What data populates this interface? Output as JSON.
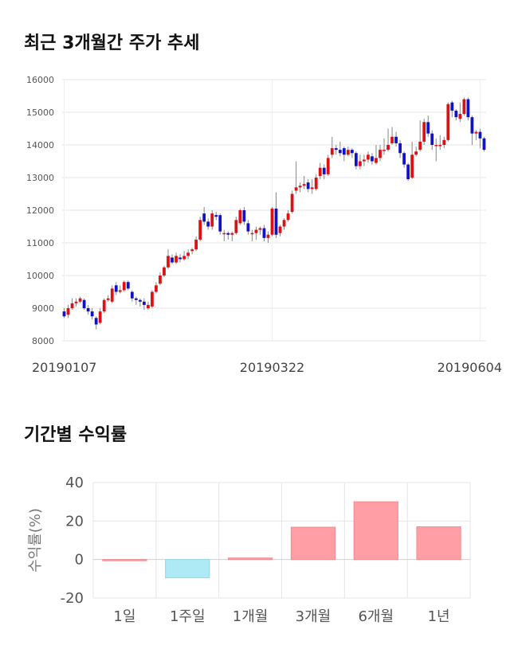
{
  "titles": {
    "price_trend": "최근 3개월간 주가 추세",
    "returns": "기간별 수익률"
  },
  "colors": {
    "up": "#dd1111",
    "down": "#1111cc",
    "wick": "#888888",
    "positive_bar": "#ff9fa5",
    "negative_bar": "#aeeaf5",
    "grid": "#e6e6e6"
  },
  "chart_data": [
    {
      "type": "candlestick",
      "title": "최근 3개월간 주가 추세",
      "ylim": [
        8000,
        16000
      ],
      "yticks": [
        8000,
        9000,
        10000,
        11000,
        12000,
        13000,
        14000,
        15000,
        16000
      ],
      "x_tick_labels": [
        "20190107",
        "20190322",
        "20190604"
      ],
      "x_tick_index": [
        0,
        52,
        104
      ],
      "grid": true,
      "series": [
        [
          8900,
          8750,
          9000,
          8700
        ],
        [
          8800,
          9000,
          9100,
          8700
        ],
        [
          9000,
          9150,
          9300,
          8950
        ],
        [
          9150,
          9200,
          9300,
          9050
        ],
        [
          9200,
          9300,
          9350,
          9150
        ],
        [
          9250,
          9000,
          9300,
          8950
        ],
        [
          9000,
          8900,
          9100,
          8800
        ],
        [
          8900,
          8750,
          9000,
          8650
        ],
        [
          8700,
          8500,
          8750,
          8350
        ],
        [
          8550,
          8900,
          9000,
          8500
        ],
        [
          8900,
          9250,
          9300,
          8850
        ],
        [
          9250,
          9300,
          9400,
          9200
        ],
        [
          9200,
          9600,
          9700,
          9150
        ],
        [
          9700,
          9500,
          9800,
          9400
        ],
        [
          9500,
          9550,
          9700,
          9450
        ],
        [
          9550,
          9800,
          9850,
          9500
        ],
        [
          9800,
          9600,
          9850,
          9550
        ],
        [
          9500,
          9300,
          9550,
          9200
        ],
        [
          9300,
          9250,
          9350,
          9100
        ],
        [
          9250,
          9200,
          9300,
          9050
        ],
        [
          9200,
          9100,
          9300,
          8950
        ],
        [
          9000,
          9100,
          9200,
          8950
        ],
        [
          9050,
          9500,
          9550,
          9000
        ],
        [
          9500,
          9700,
          9800,
          9450
        ],
        [
          9750,
          10000,
          10100,
          9700
        ],
        [
          10000,
          10250,
          10300,
          9950
        ],
        [
          10250,
          10600,
          10800,
          10200
        ],
        [
          10550,
          10400,
          10650,
          10350
        ],
        [
          10400,
          10600,
          10700,
          10350
        ],
        [
          10550,
          10500,
          10650,
          10400
        ],
        [
          10500,
          10600,
          10750,
          10450
        ],
        [
          10600,
          10700,
          10800,
          10500
        ],
        [
          10750,
          10800,
          10850,
          10650
        ],
        [
          10800,
          11100,
          11200,
          10750
        ],
        [
          11100,
          11700,
          11800,
          11050
        ],
        [
          11900,
          11650,
          12100,
          11550
        ],
        [
          11650,
          11500,
          11750,
          11400
        ],
        [
          11500,
          11900,
          12000,
          11400
        ],
        [
          11850,
          11800,
          11950,
          11700
        ],
        [
          11850,
          11350,
          11900,
          11250
        ],
        [
          11300,
          11300,
          11400,
          11050
        ],
        [
          11300,
          11250,
          11350,
          11100
        ],
        [
          11250,
          11300,
          11350,
          11050
        ],
        [
          11300,
          11700,
          11800,
          11250
        ],
        [
          11600,
          12000,
          12050,
          11550
        ],
        [
          12000,
          11650,
          12100,
          11550
        ],
        [
          11600,
          11350,
          11700,
          11250
        ],
        [
          11300,
          11300,
          11400,
          11050
        ],
        [
          11300,
          11400,
          11500,
          11100
        ],
        [
          11400,
          11450,
          11500,
          11250
        ],
        [
          11450,
          11150,
          11550,
          11050
        ],
        [
          11150,
          11250,
          11350,
          11000
        ],
        [
          11250,
          12050,
          12100,
          11200
        ],
        [
          12050,
          11250,
          12550,
          11150
        ],
        [
          11300,
          11500,
          11550,
          11200
        ],
        [
          11500,
          11700,
          11750,
          11400
        ],
        [
          11700,
          11900,
          12000,
          11650
        ],
        [
          11950,
          12500,
          12600,
          11900
        ],
        [
          12600,
          12700,
          13500,
          12500
        ],
        [
          12700,
          12750,
          12850,
          12550
        ],
        [
          12750,
          12800,
          13050,
          12650
        ],
        [
          12850,
          12650,
          12950,
          12550
        ],
        [
          12650,
          12700,
          12950,
          12500
        ],
        [
          12650,
          13000,
          13100,
          12600
        ],
        [
          13050,
          13300,
          13450,
          12950
        ],
        [
          13300,
          13100,
          13400,
          12950
        ],
        [
          13100,
          13600,
          13700,
          13050
        ],
        [
          13700,
          13900,
          14250,
          13600
        ],
        [
          13900,
          13850,
          14000,
          13700
        ],
        [
          13850,
          13750,
          14100,
          13650
        ],
        [
          13900,
          13700,
          13950,
          13500
        ],
        [
          13700,
          13850,
          13950,
          13650
        ],
        [
          13850,
          13750,
          13900,
          13600
        ],
        [
          13750,
          13350,
          13800,
          13250
        ],
        [
          13350,
          13500,
          13700,
          13250
        ],
        [
          13500,
          13550,
          13700,
          13350
        ],
        [
          13550,
          13700,
          13800,
          13450
        ],
        [
          13650,
          13500,
          13750,
          13400
        ],
        [
          13450,
          13600,
          14000,
          13400
        ],
        [
          13600,
          13850,
          14000,
          13500
        ],
        [
          13850,
          13850,
          14200,
          13700
        ],
        [
          13850,
          14000,
          14500,
          13800
        ],
        [
          14050,
          14250,
          14550,
          14000
        ],
        [
          14250,
          14050,
          14400,
          13950
        ],
        [
          14050,
          13750,
          14150,
          13600
        ],
        [
          13750,
          13400,
          13800,
          13300
        ],
        [
          13400,
          12950,
          13450,
          12900
        ],
        [
          13000,
          13700,
          14100,
          12950
        ],
        [
          13700,
          13800,
          13950,
          13650
        ],
        [
          13850,
          14100,
          14750,
          13800
        ],
        [
          14100,
          14700,
          14800,
          14000
        ],
        [
          14700,
          14350,
          14900,
          14250
        ],
        [
          14350,
          14000,
          14450,
          13850
        ],
        [
          14000,
          14000,
          14200,
          13500
        ],
        [
          14000,
          14000,
          14300,
          13850
        ],
        [
          14000,
          14150,
          14250,
          13900
        ],
        [
          14150,
          15250,
          15300,
          14100
        ],
        [
          15300,
          15050,
          15350,
          14850
        ],
        [
          15050,
          14850,
          15100,
          14750
        ],
        [
          14800,
          14950,
          15300,
          14700
        ],
        [
          14950,
          15400,
          15450,
          14900
        ],
        [
          15400,
          14850,
          15450,
          14750
        ],
        [
          14850,
          14350,
          14900,
          14000
        ],
        [
          14350,
          14400,
          14450,
          14150
        ],
        [
          14400,
          14200,
          14500,
          13900
        ],
        [
          14200,
          13850,
          14250,
          13800
        ]
      ]
    },
    {
      "type": "bar",
      "title": "기간별 수익률",
      "ylabel": "수익률(%)",
      "ylim": [
        -20,
        40
      ],
      "yticks": [
        40,
        20,
        0,
        -20
      ],
      "categories": [
        "1일",
        "1주일",
        "1개월",
        "3개월",
        "6개월",
        "1년"
      ],
      "values": [
        0,
        -9.5,
        0.8,
        16.8,
        30,
        17
      ],
      "grid": true
    }
  ]
}
